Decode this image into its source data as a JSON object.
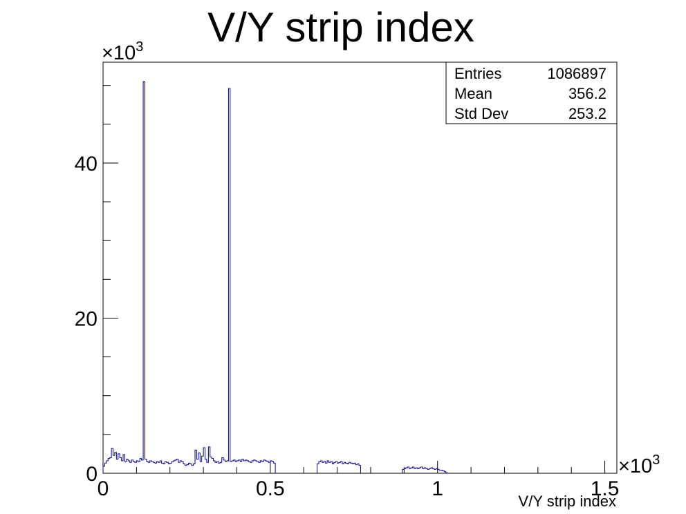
{
  "chart_data": {
    "type": "histogram",
    "title": "V/Y strip index",
    "xlabel": "V/Y strip index",
    "ylabel": "",
    "x_multiplier_label": "×10",
    "x_multiplier_exp": "3",
    "y_multiplier_label": "×10",
    "y_multiplier_exp": "3",
    "xlim": [
      0,
      1536
    ],
    "ylim": [
      0,
      53
    ],
    "x_ticks": [
      {
        "value": 0,
        "label": "0"
      },
      {
        "value": 500,
        "label": "0.5"
      },
      {
        "value": 1000,
        "label": "1"
      },
      {
        "value": 1500,
        "label": "1.5"
      }
    ],
    "y_ticks": [
      {
        "value": 0,
        "label": "0"
      },
      {
        "value": 20,
        "label": "20"
      },
      {
        "value": 40,
        "label": "40"
      }
    ],
    "series_color": "#000099",
    "segments": [
      {
        "x": [
          0,
          5,
          10,
          15,
          20,
          25,
          30,
          35,
          40,
          45,
          50,
          55,
          60,
          65,
          70,
          75,
          80,
          85,
          90,
          95,
          100,
          105,
          110,
          115,
          120,
          125,
          130,
          135,
          140,
          145,
          150,
          155,
          160,
          165,
          170,
          175,
          180,
          185,
          190,
          195,
          200,
          205,
          210,
          215,
          220,
          225,
          230,
          235,
          240,
          245,
          250,
          255,
          260,
          265,
          270,
          275,
          280,
          285,
          290,
          295,
          300,
          305,
          310,
          315,
          320,
          325,
          330,
          335,
          340,
          345,
          350,
          355,
          360,
          365,
          370,
          375,
          380,
          385,
          390,
          395,
          400,
          405,
          410,
          415,
          420,
          425,
          430,
          435,
          440,
          445,
          450,
          455,
          460,
          465,
          470,
          475,
          480,
          485,
          490,
          495,
          500,
          505,
          510
        ],
        "y": [
          0.9,
          1.3,
          1.6,
          1.9,
          2.0,
          3.2,
          2.3,
          2.7,
          1.8,
          2.5,
          2.0,
          1.6,
          2.4,
          1.5,
          1.8,
          1.6,
          1.4,
          1.7,
          1.5,
          1.4,
          1.6,
          1.5,
          1.9,
          1.7,
          50.5,
          1.8,
          1.5,
          1.4,
          1.6,
          1.5,
          1.4,
          1.3,
          1.5,
          1.4,
          1.6,
          1.3,
          1.2,
          1.5,
          1.4,
          1.2,
          1.3,
          1.5,
          1.6,
          1.7,
          1.8,
          1.4,
          1.6,
          1.5,
          1.2,
          1.0,
          1.1,
          1.3,
          1.2,
          1.0,
          1.2,
          3.0,
          1.8,
          2.6,
          1.5,
          2.2,
          3.3,
          1.8,
          1.4,
          3.4,
          2.1,
          1.9,
          1.6,
          1.4,
          1.5,
          1.3,
          1.4,
          2.0,
          1.7,
          1.5,
          1.6,
          49.6,
          1.5,
          1.6,
          1.7,
          1.5,
          1.6,
          1.7,
          1.5,
          1.8,
          1.6,
          1.7,
          1.6,
          1.5,
          1.4,
          1.6,
          1.7,
          1.6,
          1.5,
          1.4,
          1.6,
          1.5,
          1.7,
          1.6,
          1.5,
          1.4,
          1.6,
          1.5,
          1.3
        ]
      },
      {
        "x": [
          640,
          645,
          650,
          655,
          660,
          665,
          670,
          675,
          680,
          685,
          690,
          695,
          700,
          705,
          710,
          715,
          720,
          725,
          730,
          735,
          740,
          745,
          750,
          755,
          760,
          765
        ],
        "y": [
          1.2,
          1.5,
          1.6,
          1.4,
          1.5,
          1.3,
          1.6,
          1.4,
          1.5,
          1.2,
          1.4,
          1.5,
          1.3,
          1.4,
          1.5,
          1.2,
          1.4,
          1.3,
          1.2,
          1.4,
          1.3,
          1.2,
          1.3,
          1.1,
          1.2,
          1.0
        ]
      },
      {
        "x": [
          895,
          900,
          905,
          910,
          915,
          920,
          925,
          930,
          935,
          940,
          945,
          950,
          955,
          960,
          965,
          970,
          975,
          980,
          985,
          990,
          995,
          1000,
          1005,
          1010,
          1015,
          1020,
          1025
        ],
        "y": [
          0.5,
          0.6,
          0.7,
          0.8,
          0.6,
          0.7,
          0.8,
          0.6,
          0.7,
          0.6,
          0.7,
          0.8,
          0.6,
          0.7,
          0.6,
          0.5,
          0.6,
          0.7,
          0.6,
          0.5,
          0.6,
          0.5,
          0.4,
          0.4,
          0.3,
          0.2,
          0.05
        ]
      }
    ],
    "stats_box": {
      "rows": [
        {
          "label": "Entries",
          "value": "1086897"
        },
        {
          "label": "Mean",
          "value": "356.2"
        },
        {
          "label": "Std Dev",
          "value": "253.2"
        }
      ]
    }
  }
}
